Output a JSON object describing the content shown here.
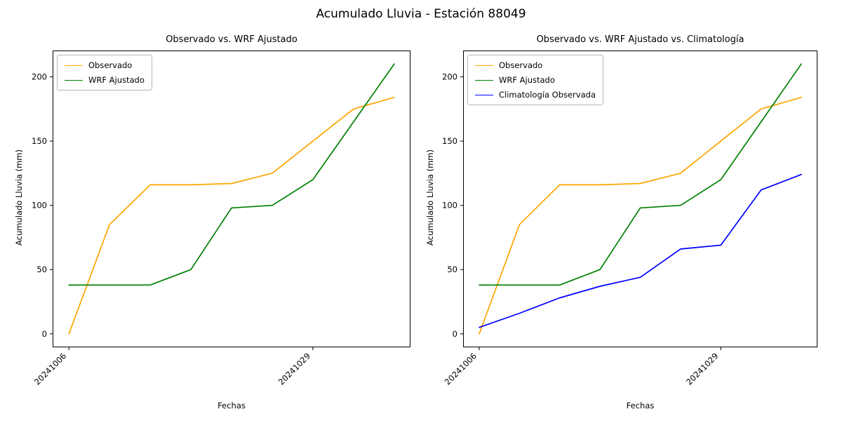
{
  "figure": {
    "suptitle": "Acumulado Lluvia - Estación 88049",
    "background": "#ffffff"
  },
  "chart_data": [
    {
      "type": "line",
      "title": "Observado vs. WRF Ajustado",
      "xlabel": "Fechas",
      "ylabel": "Acumulado Lluvia (mm)",
      "x": [
        0,
        1,
        2,
        3,
        4,
        5,
        6,
        7,
        8
      ],
      "xlim": [
        -0.4,
        8.4
      ],
      "ylim": [
        -10.5,
        220.5
      ],
      "y_ticks": [
        0,
        50,
        100,
        150,
        200
      ],
      "x_tick_positions": [
        0,
        6
      ],
      "x_tick_labels": [
        "20241006",
        "20241029"
      ],
      "x_tick_rotation": 45,
      "grid": false,
      "legend_position": "upper left",
      "series": [
        {
          "name": "Observado",
          "color": "#ffa500",
          "values": [
            0,
            85,
            116,
            116,
            117,
            125,
            150,
            175,
            184
          ]
        },
        {
          "name": "WRF Ajustado",
          "color": "#008000",
          "values": [
            38,
            38,
            38,
            50,
            98,
            100,
            120,
            165,
            210
          ]
        }
      ]
    },
    {
      "type": "line",
      "title": "Observado vs. WRF Ajustado vs. Climatología",
      "xlabel": "Fechas",
      "ylabel": "Acumulado Lluvia (mm)",
      "x": [
        0,
        1,
        2,
        3,
        4,
        5,
        6,
        7,
        8
      ],
      "xlim": [
        -0.4,
        8.4
      ],
      "ylim": [
        -10.5,
        220.5
      ],
      "y_ticks": [
        0,
        50,
        100,
        150,
        200
      ],
      "x_tick_positions": [
        0,
        6
      ],
      "x_tick_labels": [
        "20241006",
        "20241029"
      ],
      "x_tick_rotation": 45,
      "grid": false,
      "legend_position": "upper left",
      "series": [
        {
          "name": "Observado",
          "color": "#ffa500",
          "values": [
            0,
            85,
            116,
            116,
            117,
            125,
            150,
            175,
            184
          ]
        },
        {
          "name": "WRF Ajustado",
          "color": "#008000",
          "values": [
            38,
            38,
            38,
            50,
            98,
            100,
            120,
            165,
            210
          ]
        },
        {
          "name": "Climatología Observada",
          "color": "#0000ff",
          "values": [
            5,
            16,
            28,
            37,
            44,
            66,
            69,
            112,
            124
          ]
        }
      ]
    }
  ]
}
